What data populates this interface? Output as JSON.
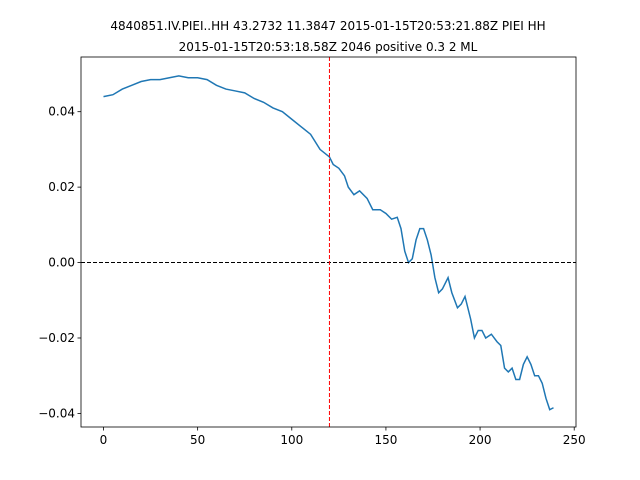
{
  "chart_data": {
    "type": "line",
    "title": [
      "4840851.IV.PIEI..HH 43.2732 11.3847 2015-01-15T20:53:21.88Z PIEI HH",
      "2015-01-15T20:53:18.58Z 2046 positive 0.3 2 ML"
    ],
    "x": [
      0,
      5,
      10,
      15,
      20,
      25,
      30,
      35,
      40,
      45,
      50,
      55,
      60,
      65,
      70,
      75,
      80,
      85,
      90,
      95,
      100,
      105,
      110,
      115,
      120,
      122,
      125,
      128,
      130,
      133,
      136,
      140,
      143,
      147,
      150,
      153,
      156,
      158,
      160,
      162,
      164,
      166,
      168,
      170,
      172,
      174,
      176,
      178,
      180,
      183,
      185,
      188,
      190,
      192,
      195,
      197,
      199,
      201,
      203,
      206,
      209,
      211,
      213,
      215,
      217,
      219,
      221,
      223,
      225,
      227,
      229,
      231,
      233,
      235,
      237,
      239
    ],
    "series": [
      {
        "color": "#1f77b4",
        "values": [
          0.044,
          0.0445,
          0.046,
          0.047,
          0.048,
          0.0485,
          0.0485,
          0.049,
          0.0495,
          0.049,
          0.049,
          0.0485,
          0.047,
          0.046,
          0.0455,
          0.045,
          0.0435,
          0.0425,
          0.041,
          0.04,
          0.038,
          0.036,
          0.034,
          0.03,
          0.028,
          0.026,
          0.025,
          0.023,
          0.02,
          0.018,
          0.019,
          0.017,
          0.014,
          0.014,
          0.013,
          0.0115,
          0.012,
          0.009,
          0.003,
          0.0,
          0.001,
          0.006,
          0.009,
          0.009,
          0.006,
          0.002,
          -0.004,
          -0.008,
          -0.007,
          -0.004,
          -0.008,
          -0.012,
          -0.011,
          -0.009,
          -0.015,
          -0.02,
          -0.018,
          -0.018,
          -0.02,
          -0.019,
          -0.021,
          -0.022,
          -0.028,
          -0.029,
          -0.028,
          -0.031,
          -0.031,
          -0.027,
          -0.025,
          -0.027,
          -0.03,
          -0.03,
          -0.032,
          -0.036,
          -0.039,
          -0.0385
        ]
      }
    ],
    "xlim": [
      -11.95,
      250.95
    ],
    "ylim": [
      -0.0436,
      0.0545
    ],
    "xticks": [
      0,
      50,
      100,
      150,
      200,
      250
    ],
    "yticks": [
      {
        "value": -0.04,
        "label": "−0.04"
      },
      {
        "value": -0.02,
        "label": "−0.02"
      },
      {
        "value": 0,
        "label": "0.00"
      },
      0.02,
      0.04
    ],
    "vlines": [
      {
        "x": 120,
        "color": "red"
      }
    ],
    "hlines": [
      {
        "y": 0,
        "color": "black"
      }
    ]
  }
}
